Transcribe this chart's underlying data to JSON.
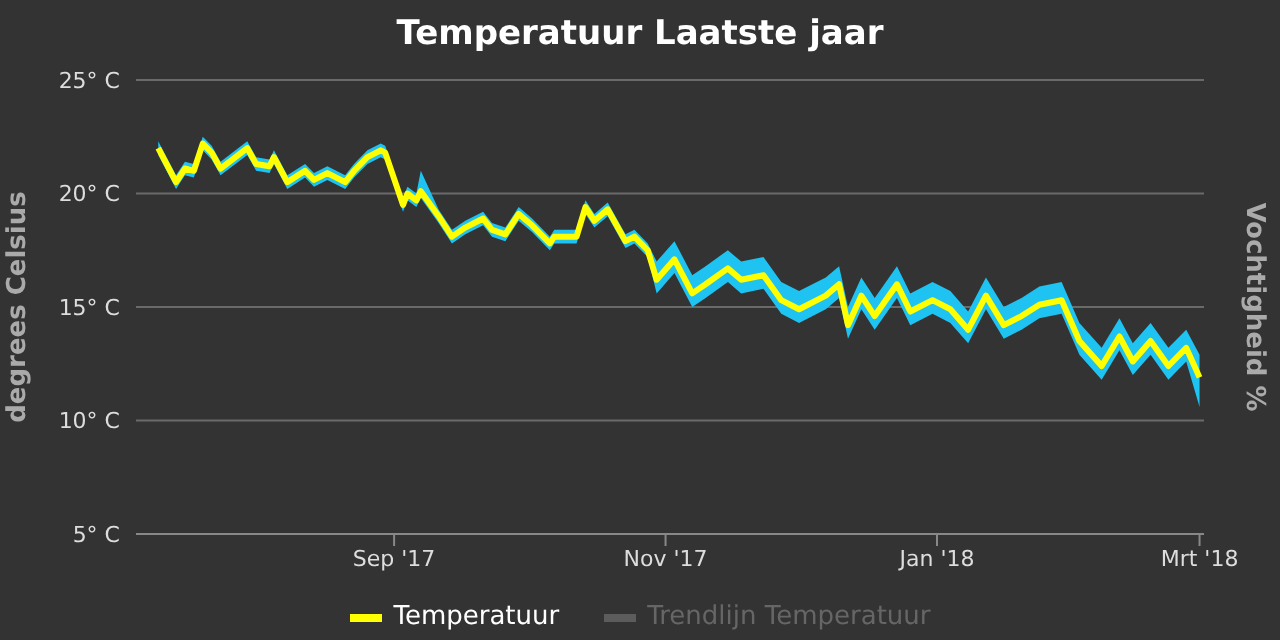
{
  "chart_data": {
    "type": "line",
    "title": "Temperatuur Laatste jaar",
    "ylabel": "degrees Celsius",
    "y2label": "Vochtigheid %",
    "x": [
      "2017-07-10",
      "2017-07-14",
      "2017-07-16",
      "2017-07-18",
      "2017-07-20",
      "2017-07-22",
      "2017-07-24",
      "2017-07-30",
      "2017-08-01",
      "2017-08-04",
      "2017-08-05",
      "2017-08-08",
      "2017-08-12",
      "2017-08-14",
      "2017-08-17",
      "2017-08-21",
      "2017-08-23",
      "2017-08-26",
      "2017-08-29",
      "2017-08-30",
      "2017-09-03",
      "2017-09-04",
      "2017-09-06",
      "2017-09-07",
      "2017-09-11",
      "2017-09-14",
      "2017-09-17",
      "2017-09-21",
      "2017-09-23",
      "2017-09-26",
      "2017-09-29",
      "2017-10-02",
      "2017-10-06",
      "2017-10-07",
      "2017-10-12",
      "2017-10-14",
      "2017-10-16",
      "2017-10-19",
      "2017-10-23",
      "2017-10-25",
      "2017-10-28",
      "2017-10-30",
      "2017-11-03",
      "2017-11-07",
      "2017-11-10",
      "2017-11-15",
      "2017-11-18",
      "2017-11-23",
      "2017-11-27",
      "2017-12-01",
      "2017-12-07",
      "2017-12-10",
      "2017-12-12",
      "2017-12-15",
      "2017-12-18",
      "2017-12-23",
      "2017-12-26",
      "2017-12-31",
      "2018-01-04",
      "2018-01-08",
      "2018-01-12",
      "2018-01-16",
      "2018-01-20",
      "2018-01-24",
      "2018-01-29",
      "2018-02-02",
      "2018-02-07",
      "2018-02-11",
      "2018-02-14",
      "2018-02-18",
      "2018-02-22",
      "2018-02-26",
      "2018-03-01"
    ],
    "series": [
      {
        "name": "Temperatuur",
        "color": "#ffff00",
        "values": [
          22.0,
          20.5,
          21.1,
          21.0,
          22.2,
          21.8,
          21.1,
          22.0,
          21.3,
          21.2,
          21.6,
          20.5,
          21.0,
          20.6,
          20.9,
          20.5,
          21.0,
          21.6,
          21.9,
          21.8,
          19.5,
          20.0,
          19.7,
          20.1,
          19.0,
          18.1,
          18.5,
          18.9,
          18.4,
          18.2,
          19.1,
          18.6,
          17.8,
          18.1,
          18.1,
          19.4,
          18.8,
          19.3,
          17.9,
          18.1,
          17.5,
          16.2,
          17.1,
          15.6,
          16.0,
          16.7,
          16.2,
          16.4,
          15.3,
          14.9,
          15.5,
          16.0,
          14.2,
          15.5,
          14.6,
          16.0,
          14.8,
          15.3,
          14.9,
          14.0,
          15.5,
          14.2,
          14.6,
          15.1,
          15.3,
          13.5,
          12.4,
          13.7,
          12.6,
          13.5,
          12.4,
          13.2,
          11.9
        ],
        "lower": [
          21.7,
          20.2,
          20.8,
          20.7,
          21.9,
          21.5,
          20.8,
          21.7,
          21.0,
          20.9,
          21.3,
          20.2,
          20.7,
          20.3,
          20.6,
          20.2,
          20.7,
          21.3,
          21.6,
          21.5,
          19.2,
          19.7,
          19.4,
          19.8,
          18.7,
          17.8,
          18.2,
          18.6,
          18.1,
          17.9,
          18.8,
          18.3,
          17.5,
          17.8,
          17.8,
          19.1,
          18.5,
          19.0,
          17.6,
          17.8,
          17.2,
          15.6,
          16.5,
          15.0,
          15.4,
          16.1,
          15.6,
          15.8,
          14.7,
          14.3,
          14.9,
          15.4,
          13.6,
          14.9,
          14.0,
          15.4,
          14.2,
          14.7,
          14.3,
          13.4,
          14.9,
          13.6,
          14.0,
          14.5,
          14.7,
          12.9,
          11.8,
          13.1,
          12.0,
          12.9,
          11.8,
          12.6,
          10.6
        ],
        "upper": [
          22.3,
          20.8,
          21.4,
          21.3,
          22.5,
          22.1,
          21.4,
          22.3,
          21.6,
          21.5,
          21.9,
          20.8,
          21.3,
          20.9,
          21.2,
          20.8,
          21.3,
          21.9,
          22.2,
          22.1,
          19.8,
          20.3,
          20.0,
          21.0,
          19.3,
          18.4,
          18.8,
          19.2,
          18.7,
          18.5,
          19.4,
          18.9,
          18.1,
          18.4,
          18.4,
          19.7,
          19.1,
          19.6,
          18.2,
          18.4,
          17.8,
          17.0,
          17.9,
          16.4,
          16.8,
          17.5,
          17.0,
          17.2,
          16.1,
          15.7,
          16.3,
          16.8,
          15.0,
          16.3,
          15.4,
          16.8,
          15.6,
          16.1,
          15.7,
          14.8,
          16.3,
          15.0,
          15.4,
          15.9,
          16.1,
          14.3,
          13.2,
          14.5,
          13.4,
          14.3,
          13.2,
          14.0,
          12.9
        ]
      },
      {
        "name": "Trendlijn Temperatuur",
        "color": "#5c5c5c",
        "values": [
          null,
          null,
          null,
          null,
          null,
          null,
          null,
          null,
          null,
          null,
          null,
          null,
          null,
          null,
          null,
          null,
          null,
          null,
          null,
          null,
          null,
          null,
          null,
          null,
          null,
          null,
          null,
          null,
          null,
          null,
          null,
          null,
          null,
          null,
          null,
          null,
          null,
          null,
          null,
          null,
          null,
          null,
          null,
          null,
          null,
          null,
          null,
          null,
          null,
          null,
          null,
          null,
          null,
          null,
          null,
          null,
          null,
          null,
          null,
          null,
          null,
          null,
          null,
          null,
          null,
          null,
          null,
          null,
          null,
          null,
          null,
          null,
          null
        ]
      }
    ],
    "xlim": [
      "2017-07-05",
      "2018-03-02"
    ],
    "xticks": [
      {
        "value": "2017-09-01",
        "label": "Sep '17"
      },
      {
        "value": "2017-11-01",
        "label": "Nov '17"
      },
      {
        "value": "2018-01-01",
        "label": "Jan '18"
      },
      {
        "value": "2018-03-01",
        "label": "Mrt '18"
      }
    ],
    "ylim": [
      5,
      25
    ],
    "yticks": [
      {
        "value": 5,
        "label": "5° C"
      },
      {
        "value": 10,
        "label": "10° C"
      },
      {
        "value": 15,
        "label": "15° C"
      },
      {
        "value": 20,
        "label": "20° C"
      },
      {
        "value": 25,
        "label": "25° C"
      }
    ],
    "grid": "y",
    "legend": "bottom",
    "marker": "none",
    "line_style": "solid"
  }
}
